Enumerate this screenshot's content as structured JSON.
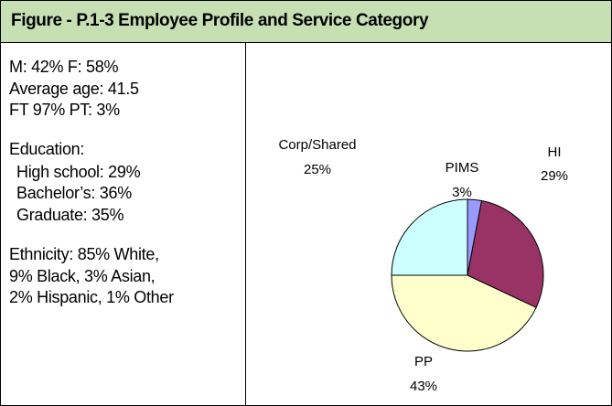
{
  "header": {
    "title": "Figure - P.1-3 Employee Profile and Service Category"
  },
  "profile": {
    "lines": [
      "M: 42%  F: 58%",
      "Average age: 41.5",
      "FT 97%   PT: 3%",
      "Education:",
      "High school: 29%",
      "Bachelor’s: 36%",
      "Graduate: 35%",
      "Ethnicity:   85% White,",
      "9% Black, 3% Asian,",
      "2% Hispanic, 1% Other"
    ]
  },
  "chart_data": {
    "type": "pie",
    "categories": [
      "PIMS",
      "HI",
      "PP",
      "Corp/Shared"
    ],
    "values": [
      3,
      29,
      43,
      25
    ],
    "value_labels": [
      "3%",
      "29%",
      "43%",
      "25%"
    ],
    "colors": [
      "#9999ff",
      "#993366",
      "#ffffcc",
      "#ccffff"
    ]
  }
}
